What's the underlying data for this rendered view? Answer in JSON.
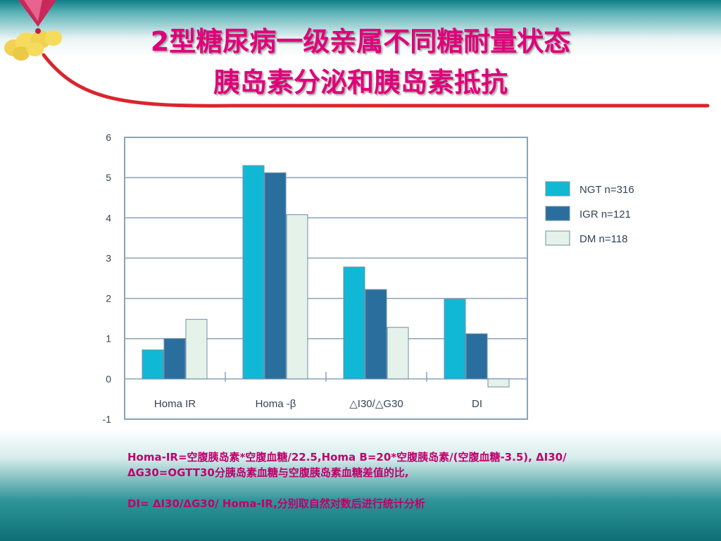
{
  "slide": {
    "title_line1": "2型糖尿病一级亲属不同糖耐量状态",
    "title_line2": "胰岛素分泌和胰岛素抵抗",
    "caption1": "Homa-IR=空腹胰岛素*空腹血糖/22.5,Homa B=20*空腹胰岛素/(空腹血糖-3.5), ΔI30/ΔG30=OGTT30分胰岛素血糖与空腹胰岛素血糖差值的比,",
    "caption2": "DI= ΔI30/ΔG30/ Homa-IR,分别取自然对数后进行统计分析"
  },
  "chart_data": {
    "type": "bar",
    "categories": [
      "Homa IR",
      "Homa -β",
      "△I30/△G30",
      "DI"
    ],
    "series": [
      {
        "name": "NGT n=316",
        "values": [
          0.72,
          5.3,
          2.78,
          1.98
        ],
        "color": "#11b8d6"
      },
      {
        "name": "IGR n=121",
        "values": [
          1.0,
          5.12,
          2.22,
          1.12
        ],
        "color": "#2a6e9e"
      },
      {
        "name": "DM n=118",
        "values": [
          1.48,
          4.08,
          1.28,
          -0.2
        ],
        "color": "#e4f2ea"
      }
    ],
    "ylim": [
      -1,
      6
    ],
    "yticks": [
      "-1",
      "0",
      "1",
      "2",
      "3",
      "4",
      "5",
      "6"
    ],
    "grid": true,
    "legend": "right",
    "title": "",
    "xlabel": "",
    "ylabel": ""
  }
}
